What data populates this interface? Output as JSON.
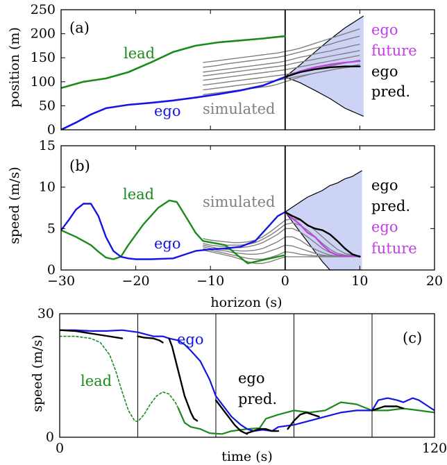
{
  "colors": {
    "ego": "#1414e6",
    "lead": "#1a8a1a",
    "future": "#c040e0",
    "pred": "#000000",
    "simulated": "#808080",
    "band": "#cdd3f5"
  },
  "chart_data": [
    {
      "panel": "(a)",
      "type": "line",
      "ylabel": "position (m)",
      "xlim": [
        -30,
        20
      ],
      "ylim": [
        0,
        250
      ],
      "yticks": [
        "0",
        "50",
        "100",
        "150",
        "200",
        "250"
      ],
      "vline_x": 0,
      "labels": {
        "lead": "lead",
        "ego": "ego",
        "simulated": "simulated",
        "future1": "ego",
        "future2": "future",
        "pred1": "ego",
        "pred2": "pred."
      },
      "series": [
        {
          "name": "lead",
          "color": "lead",
          "width": 2.6,
          "x": [
            -30,
            -27,
            -24,
            -21,
            -18,
            -15,
            -12,
            -9,
            -6,
            -3,
            0
          ],
          "y": [
            87,
            100,
            107,
            120,
            140,
            162,
            175,
            182,
            186,
            190,
            195
          ]
        },
        {
          "name": "ego",
          "color": "ego",
          "width": 2.6,
          "x": [
            -30,
            -28,
            -26,
            -24,
            -21,
            -18,
            -15,
            -12,
            -9,
            -6,
            -3,
            0
          ],
          "y": [
            0,
            15,
            32,
            45,
            52,
            56,
            61,
            67,
            74,
            82,
            92,
            110
          ]
        },
        {
          "name": "ego future",
          "color": "future",
          "width": 2.2,
          "x": [
            0,
            2,
            4,
            6,
            8,
            10
          ],
          "y": [
            110,
            122,
            130,
            136,
            140,
            143
          ]
        },
        {
          "name": "ego pred.",
          "color": "pred",
          "width": 2.4,
          "x": [
            0,
            2,
            4,
            6,
            8,
            10
          ],
          "y": [
            110,
            120,
            126,
            130,
            132,
            132
          ]
        }
      ],
      "simulated_x": [
        -11,
        -10,
        -9,
        -8,
        -7,
        -6,
        -5,
        -4,
        -3,
        -2,
        -1,
        0,
        1,
        2,
        3,
        4,
        5,
        6,
        7,
        8,
        9,
        10
      ],
      "simulated_lines": [
        [
          140,
          142,
          144,
          146,
          148,
          150,
          152,
          154,
          156,
          158,
          160,
          163,
          166,
          170,
          175,
          180,
          185,
          190,
          195,
          200,
          205,
          210
        ],
        [
          130,
          132,
          134,
          137,
          139,
          141,
          143,
          145,
          147,
          149,
          151,
          154,
          158,
          162,
          166,
          170,
          174,
          178,
          183,
          187,
          191,
          195
        ],
        [
          120,
          122,
          124,
          126,
          128,
          130,
          132,
          134,
          136,
          138,
          140,
          143,
          147,
          151,
          154,
          158,
          161,
          164,
          168,
          171,
          175,
          178
        ],
        [
          112,
          114,
          116,
          118,
          120,
          122,
          124,
          126,
          128,
          130,
          132,
          134,
          138,
          141,
          144,
          147,
          150,
          153,
          156,
          159,
          162,
          165
        ],
        [
          103,
          105,
          107,
          109,
          111,
          113,
          115,
          117,
          119,
          121,
          123,
          125,
          128,
          131,
          134,
          137,
          140,
          143,
          146,
          149,
          152,
          155
        ],
        [
          93,
          95,
          97,
          99,
          101,
          103,
          105,
          107,
          109,
          111,
          113,
          115,
          118,
          121,
          124,
          127,
          130,
          133,
          136,
          139,
          142,
          145
        ],
        [
          83,
          85,
          87,
          89,
          91,
          93,
          95,
          97,
          99,
          101,
          103,
          106,
          109,
          112,
          115,
          118,
          121,
          124,
          127,
          130,
          133,
          136
        ],
        [
          73,
          75,
          77,
          79,
          81,
          83,
          85,
          87,
          89,
          91,
          95,
          100,
          105,
          110,
          114,
          118,
          121,
          124,
          127,
          129,
          131,
          133
        ]
      ],
      "band": {
        "x": [
          0,
          2,
          4,
          6,
          8,
          10.5
        ],
        "upper": [
          110,
          135,
          162,
          188,
          212,
          237
        ],
        "lower": [
          110,
          98,
          82,
          65,
          45,
          28
        ]
      }
    },
    {
      "panel": "(b)",
      "type": "line",
      "ylabel": "speed (m/s)",
      "xlabel": "horizon (s)",
      "xlim": [
        -30,
        20
      ],
      "ylim": [
        0,
        15
      ],
      "xticks": [
        "−30",
        "−20",
        "−10",
        "0",
        "10",
        "20"
      ],
      "yticks": [
        "0",
        "5",
        "10",
        "15"
      ],
      "vline_x": 0,
      "labels": {
        "lead": "lead",
        "ego": "ego",
        "simulated": "simulated",
        "pred1": "ego",
        "pred2": "pred.",
        "future1": "ego",
        "future2": "future"
      },
      "series": [
        {
          "name": "lead",
          "color": "lead",
          "width": 2.4,
          "x": [
            -30,
            -28,
            -26,
            -25,
            -24,
            -23,
            -22,
            -21,
            -19,
            -17,
            -15.5,
            -14.5,
            -13,
            -12,
            -11,
            -8,
            -6,
            -5,
            -4,
            -2,
            0
          ],
          "y": [
            4.8,
            4.0,
            3.0,
            2.2,
            1.5,
            1.3,
            1.6,
            3.0,
            5.5,
            7.5,
            8.4,
            8.2,
            6.0,
            4.5,
            3.5,
            3.0,
            1.5,
            0.8,
            1.0,
            1.4,
            1.8
          ]
        },
        {
          "name": "ego",
          "color": "ego",
          "width": 2.4,
          "x": [
            -30,
            -29,
            -28,
            -27,
            -26,
            -25,
            -24,
            -23,
            -22,
            -21,
            -20,
            -18,
            -15,
            -12,
            -10,
            -8,
            -6,
            -4,
            -3,
            -2,
            -1,
            0
          ],
          "y": [
            4.8,
            6.0,
            7.3,
            8.0,
            8.0,
            6.5,
            4.0,
            2.3,
            1.6,
            1.4,
            1.3,
            1.3,
            1.4,
            2.3,
            2.5,
            2.6,
            2.8,
            3.5,
            4.5,
            5.5,
            6.5,
            7.0
          ]
        },
        {
          "name": "ego future",
          "color": "future",
          "width": 2.2,
          "x": [
            0,
            1,
            2,
            3,
            4,
            5,
            6,
            7,
            8,
            9,
            10
          ],
          "y": [
            7.0,
            6.2,
            5.5,
            4.5,
            4.0,
            3.0,
            2.2,
            1.8,
            1.7,
            1.7,
            1.7
          ]
        },
        {
          "name": "ego pred.",
          "color": "pred",
          "width": 2.4,
          "x": [
            0,
            1,
            2,
            3,
            4,
            5,
            6,
            7,
            8,
            9,
            10
          ],
          "y": [
            7.0,
            6.5,
            6.1,
            5.4,
            5.0,
            4.8,
            4.3,
            3.5,
            2.6,
            1.9,
            1.6
          ]
        }
      ],
      "simulated_x": [
        -11,
        -10,
        -9,
        -8,
        -7,
        -6,
        -5,
        -4,
        -3,
        -2,
        -1,
        0,
        1,
        2,
        3,
        4,
        5,
        6,
        7,
        8,
        9,
        10
      ],
      "simulated_lines": [
        [
          3.8,
          3.6,
          3.5,
          3.4,
          3.3,
          3.3,
          3.4,
          3.6,
          4.0,
          4.6,
          5.3,
          6.0,
          6.2,
          6.0,
          5.5,
          4.8,
          4.0,
          3.2,
          2.5,
          2.0,
          1.8,
          1.7
        ],
        [
          3.5,
          3.3,
          3.2,
          3.0,
          3.0,
          3.0,
          3.1,
          3.3,
          3.7,
          4.2,
          4.8,
          5.5,
          5.7,
          5.4,
          4.8,
          4.0,
          3.2,
          2.5,
          2.0,
          1.8,
          1.7,
          1.7
        ],
        [
          3.2,
          3.0,
          2.9,
          2.8,
          2.7,
          2.7,
          2.8,
          3.0,
          3.3,
          3.8,
          4.3,
          5.0,
          5.0,
          4.6,
          4.0,
          3.3,
          2.6,
          2.1,
          1.8,
          1.7,
          1.7,
          1.7
        ],
        [
          3.0,
          2.8,
          2.6,
          2.5,
          2.4,
          2.3,
          2.3,
          2.4,
          2.6,
          3.0,
          3.4,
          4.0,
          4.0,
          3.6,
          3.0,
          2.5,
          2.1,
          1.8,
          1.7,
          1.7,
          1.7,
          1.7
        ],
        [
          2.8,
          2.6,
          2.4,
          2.3,
          2.1,
          2.0,
          1.9,
          1.9,
          2.0,
          2.3,
          2.6,
          3.0,
          2.9,
          2.6,
          2.3,
          2.0,
          1.8,
          1.7,
          1.7,
          1.7,
          1.7,
          1.7
        ],
        [
          2.6,
          2.4,
          2.2,
          2.0,
          1.8,
          1.6,
          1.4,
          1.3,
          1.3,
          1.5,
          1.8,
          2.2,
          2.1,
          1.9,
          1.8,
          1.7,
          1.7,
          1.7,
          1.7,
          1.7,
          1.7,
          1.7
        ],
        [
          2.4,
          2.2,
          2.0,
          1.8,
          1.6,
          1.3,
          1.0,
          0.8,
          0.8,
          1.0,
          1.3,
          1.6,
          1.6,
          1.6,
          1.6,
          1.6,
          1.6,
          1.6,
          1.6,
          1.6,
          1.6,
          1.6
        ]
      ],
      "band": {
        "x": [
          0,
          1,
          2,
          3,
          4,
          5,
          6,
          7,
          8,
          9,
          10.3
        ],
        "upper": [
          7.0,
          7.6,
          8.2,
          8.8,
          9.2,
          9.6,
          10.2,
          10.5,
          11.0,
          11.3,
          12.0
        ],
        "lower": [
          7.0,
          5.8,
          4.6,
          3.4,
          2.2,
          1.0,
          0.0,
          0.0,
          0.0,
          0.0,
          0.0
        ]
      }
    },
    {
      "panel": "(c)",
      "type": "line",
      "ylabel": "speed (m/s)",
      "xlabel": "time (s)",
      "xlim": [
        0,
        120
      ],
      "ylim": [
        0,
        30
      ],
      "xticks": [
        "0",
        "120"
      ],
      "yticks": [
        "0",
        "30"
      ],
      "vlines": [
        25,
        50,
        75,
        100
      ],
      "labels": {
        "ego": "ego",
        "lead": "lead",
        "pred1": "ego",
        "pred2": "pred."
      },
      "series": [
        {
          "name": "lead",
          "color": "lead",
          "width": 1.6,
          "dashed": true,
          "x": [
            0,
            5,
            10,
            13,
            16,
            18,
            20,
            22,
            24,
            25,
            27,
            29,
            31,
            33,
            35,
            37,
            38
          ],
          "y": [
            24.5,
            24.5,
            24.0,
            23.0,
            20.0,
            16.0,
            11.0,
            6.5,
            4.0,
            3.8,
            5.5,
            8.0,
            10.0,
            11.0,
            10.5,
            8.5,
            7.0
          ]
        },
        {
          "name": "lead",
          "color": "lead",
          "width": 2.2,
          "dashed": false,
          "x": [
            38,
            40,
            42,
            45,
            48,
            52,
            55,
            60,
            64,
            66,
            70,
            75,
            80,
            85,
            90,
            95,
            100,
            105,
            110,
            115,
            120
          ],
          "y": [
            7.0,
            3.5,
            2.5,
            2.0,
            1.0,
            0.8,
            1.5,
            2.0,
            2.2,
            4.5,
            5.5,
            6.5,
            6.0,
            6.5,
            8.5,
            8.0,
            6.5,
            6.5,
            7.0,
            6.5,
            6.0
          ]
        },
        {
          "name": "ego",
          "color": "ego",
          "width": 2.2,
          "dashed": false,
          "x": [
            0,
            5,
            10,
            15,
            20,
            25,
            30,
            33,
            35,
            38,
            40,
            42,
            45,
            48,
            50,
            53,
            55,
            58,
            60,
            62,
            65,
            68,
            70,
            75,
            80,
            85,
            90,
            95,
            100,
            102,
            105,
            108,
            110,
            113,
            115,
            118,
            120
          ],
          "y": [
            26.0,
            26.0,
            25.8,
            25.8,
            26.0,
            25.5,
            24.5,
            24.5,
            24.0,
            23.5,
            22.5,
            21.0,
            18.5,
            14.0,
            10.0,
            7.0,
            5.0,
            3.0,
            2.0,
            1.5,
            1.8,
            1.5,
            2.5,
            3.0,
            4.0,
            5.0,
            6.0,
            6.5,
            6.5,
            9.0,
            9.5,
            9.0,
            8.5,
            9.5,
            9.0,
            7.5,
            6.5
          ]
        },
        {
          "name": "ego pred.",
          "color": "pred",
          "width": 2.4,
          "dashed": false,
          "segments": [
            {
              "x": [
                0,
                5,
                10,
                15,
                20
              ],
              "y": [
                26.0,
                25.8,
                25.2,
                24.6,
                24.0
              ]
            },
            {
              "x": [
                25,
                27,
                30,
                32,
                33
              ],
              "y": [
                24.5,
                24.2,
                24.0,
                23.5,
                23.0
              ]
            },
            {
              "x": [
                35,
                36,
                37,
                38,
                39,
                40,
                41,
                42,
                43,
                44
              ],
              "y": [
                24.0,
                22.0,
                19.0,
                16.0,
                13.0,
                10.0,
                8.0,
                6.0,
                4.5,
                4.0
              ]
            },
            {
              "x": [
                50,
                52,
                54,
                56,
                58,
                60
              ],
              "y": [
                9.0,
                7.0,
                5.0,
                3.0,
                1.5,
                0.8
              ]
            },
            {
              "x": [
                60,
                62,
                64,
                66,
                68,
                70
              ],
              "y": [
                1.0,
                1.5,
                2.0,
                2.0,
                1.5,
                1.5
              ]
            },
            {
              "x": [
                73,
                75,
                77,
                79,
                81,
                83
              ],
              "y": [
                2.0,
                4.0,
                5.5,
                6.0,
                5.5,
                5.0
              ]
            },
            {
              "x": [
                100,
                102,
                104,
                106,
                108,
                110
              ],
              "y": [
                6.5,
                7.0,
                7.5,
                7.5,
                7.5,
                7.0
              ]
            }
          ]
        }
      ]
    }
  ]
}
